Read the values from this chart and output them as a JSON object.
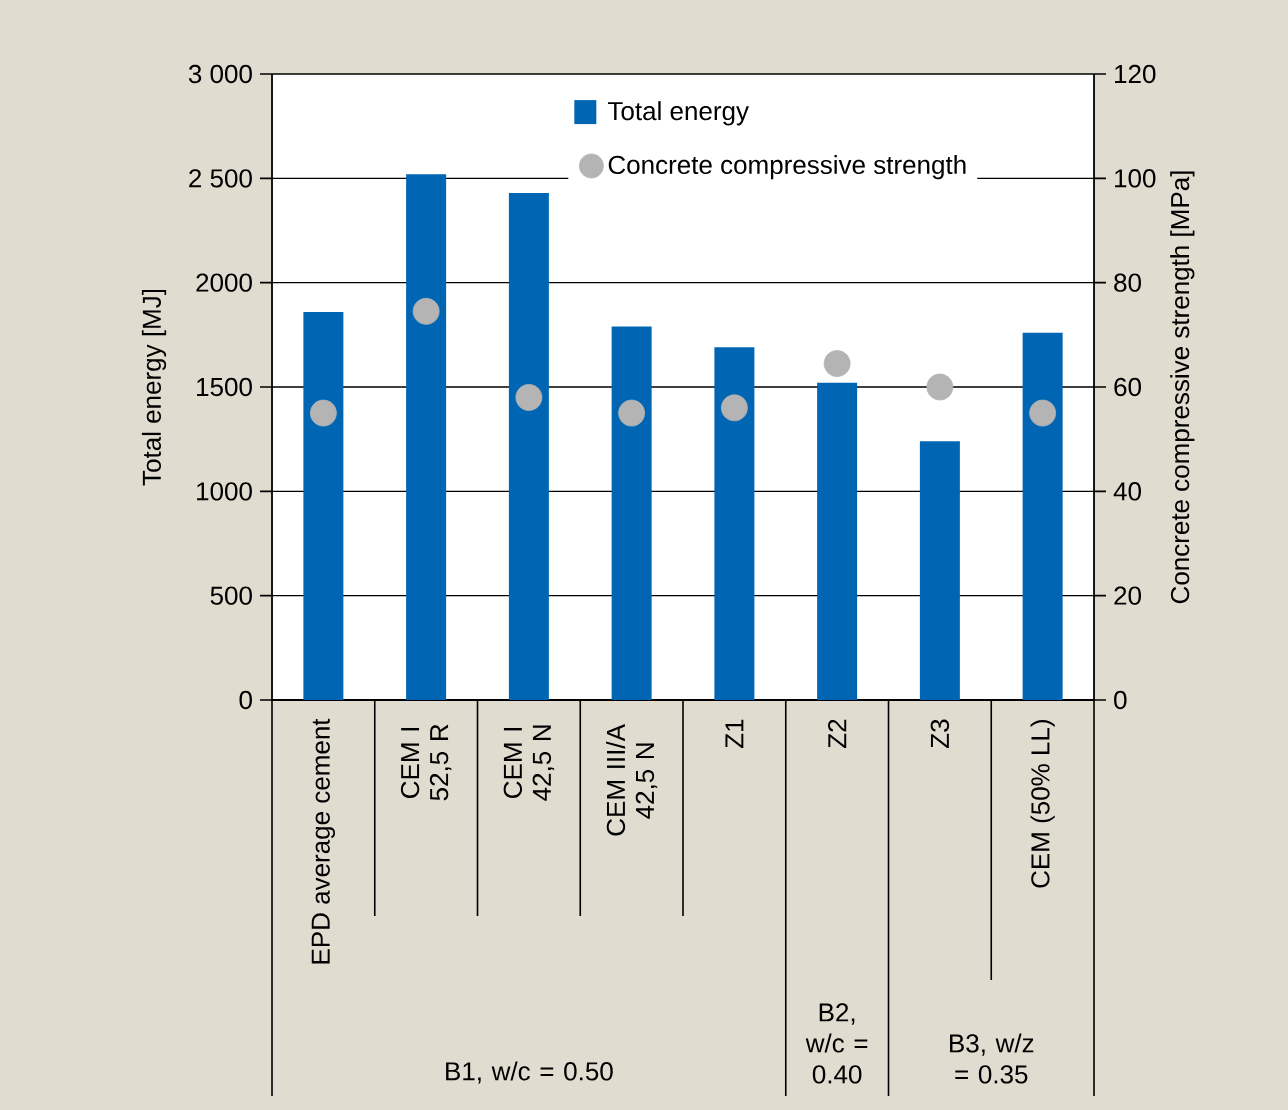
{
  "chart_data": {
    "type": "bar",
    "ylabel": "Total energy [MJ]",
    "y2label": "Concrete compressive strength [MPa]",
    "categories": [
      "EPD average cement",
      "CEM I 52,5 R",
      "CEM I 42,5 N",
      "CEM III/A 42,5 N",
      "Z1",
      "Z2",
      "Z3",
      "CEM (50% LL)"
    ],
    "series": [
      {
        "name": "Total energy",
        "color": "#0066b3",
        "values": [
          1860,
          2520,
          2430,
          1790,
          1690,
          1520,
          1240,
          1760
        ]
      },
      {
        "name": "Concrete compressive strength",
        "type": "scatter",
        "axis": "y2",
        "color": "#b4b4b4",
        "marker": "circle",
        "values": [
          55,
          74.5,
          58,
          55,
          56,
          64.5,
          60,
          55
        ]
      }
    ],
    "ylim": [
      0,
      3000
    ],
    "yticks": [
      0,
      500,
      1000,
      1500,
      2000,
      {
        "value": 2500,
        "label": "2 500"
      },
      {
        "value": 3000,
        "label": "3 000"
      }
    ],
    "y2lim": [
      0,
      120
    ],
    "y2ticks": [
      0,
      20,
      40,
      60,
      80,
      100,
      120
    ],
    "grid": "y",
    "legend": "top",
    "annotations": [
      "B1, w/c = 0.50",
      "B2, w/c = 0.40",
      "B3, w/z = 0.35"
    ]
  }
}
